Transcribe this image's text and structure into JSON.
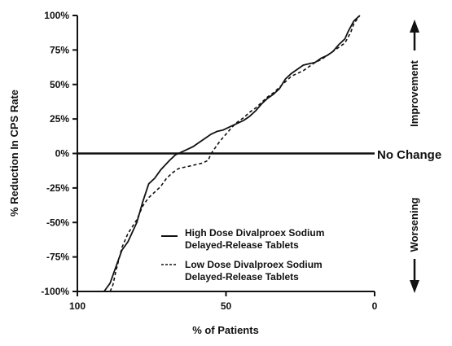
{
  "chart_data": {
    "type": "line",
    "xlabel": "% of Patients",
    "ylabel": "% Reduction In CPS Rate",
    "xlim": [
      100,
      0
    ],
    "ylim": [
      -100,
      100
    ],
    "x_reversed": true,
    "x_ticks": [
      "100",
      "50",
      "0"
    ],
    "y_ticks": [
      "100%",
      "75%",
      "50%",
      "25%",
      "0%",
      "-25%",
      "-50%",
      "-75%",
      "-100%"
    ],
    "reference_line": {
      "y": 0,
      "label": "No Change"
    },
    "annotations": {
      "top": "Improvement",
      "bottom": "Worsening"
    },
    "series": [
      {
        "name": "High Dose Divalproex Sodium",
        "name_line2": "Delayed-Release Tablets",
        "style": "solid",
        "x": [
          91,
          90,
          89,
          87,
          85,
          83,
          80,
          78,
          76,
          74,
          72,
          69,
          67,
          65,
          63,
          61,
          59,
          57,
          55,
          53,
          51,
          48,
          46,
          44,
          42,
          40,
          38,
          36,
          34,
          32,
          30,
          28,
          26,
          24,
          22,
          20,
          18,
          16,
          14,
          12,
          10,
          9,
          8,
          7,
          6,
          5
        ],
        "y": [
          -100,
          -97,
          -94,
          -82,
          -70,
          -64,
          -50,
          -35,
          -22,
          -18,
          -12,
          -5,
          -1,
          1,
          3,
          5,
          8,
          11,
          14,
          16,
          17,
          20,
          22,
          24,
          27,
          31,
          36,
          40,
          43,
          47,
          54,
          58,
          61,
          64,
          65,
          66,
          69,
          71,
          74,
          79,
          83,
          88,
          92,
          96,
          98,
          100
        ]
      },
      {
        "name": "Low Dose Divalproex Sodium",
        "name_line2": "Delayed-Release Tablets",
        "style": "dashed",
        "x": [
          89,
          88,
          87,
          85,
          83,
          80,
          78,
          76,
          74,
          72,
          70,
          68,
          66,
          64,
          62,
          60,
          58,
          56,
          55,
          54,
          52,
          50,
          48,
          46,
          44,
          42,
          40,
          38,
          36,
          34,
          32,
          30,
          28,
          26,
          24,
          22,
          20,
          18,
          16,
          14,
          12,
          10,
          9,
          8,
          7,
          6,
          5
        ],
        "y": [
          -100,
          -95,
          -85,
          -68,
          -58,
          -48,
          -38,
          -32,
          -28,
          -24,
          -18,
          -14,
          -11,
          -10,
          -9,
          -8,
          -7,
          -5,
          0,
          3,
          9,
          14,
          19,
          23,
          26,
          30,
          33,
          37,
          41,
          44,
          48,
          52,
          56,
          58,
          60,
          63,
          66,
          68,
          71,
          74,
          77,
          80,
          84,
          88,
          94,
          97,
          100
        ]
      }
    ],
    "grid": false,
    "legend_position": "lower-right"
  }
}
